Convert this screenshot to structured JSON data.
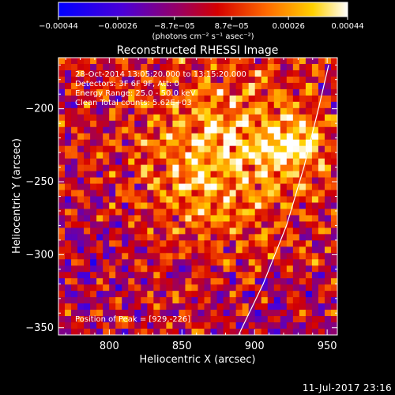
{
  "chart_data": {
    "type": "heatmap",
    "title": "Reconstructed RHESSI Image",
    "xlabel": "Heliocentric X (arcsec)",
    "ylabel": "Heliocentric Y (arcsec)",
    "xlim": [
      765,
      957
    ],
    "ylim": [
      -355,
      -165
    ],
    "x_ticks": [
      800,
      850,
      900,
      950
    ],
    "x_tick_labels": [
      "800",
      "850",
      "900",
      "950"
    ],
    "y_ticks": [
      -200,
      -250,
      -300,
      -350
    ],
    "y_tick_labels": [
      "−200",
      "−250",
      "−300",
      "−350"
    ],
    "colorbar": {
      "min": -0.00044,
      "max": 0.00044,
      "ticks": [
        -0.00044,
        -0.00026,
        -8.7e-05,
        8.7e-05,
        0.00026,
        0.00044
      ],
      "tick_labels": [
        "−0.00044",
        "−0.00026",
        "−8.7e−05",
        "8.7e−05",
        "0.00026",
        "0.00044"
      ],
      "unit_label": "(photons cm⁻² s⁻¹ asec⁻²)",
      "colormap": "blue-purple-red-orange-yellow-white"
    },
    "annotations": [
      "28-Oct-2014 13:05:20.000 to 13:15:20.000",
      "Detectors: 3F 6F 9F, Att: 0",
      "Energy Range: 25.0 - 50.0 keV",
      "Clean    Total counts: 5.62E+03"
    ],
    "peak_annotation": "Position of Peak = [929,-226]",
    "peak_position": [
      929,
      -226
    ],
    "limb": {
      "color": "#ffffff",
      "points": [
        [
          889,
          -355
        ],
        [
          906,
          -320
        ],
        [
          922,
          -280
        ],
        [
          934,
          -240
        ],
        [
          944,
          -200
        ],
        [
          951,
          -170
        ]
      ]
    }
  },
  "footer": {
    "date": "11-Jul-2017 23:16"
  }
}
